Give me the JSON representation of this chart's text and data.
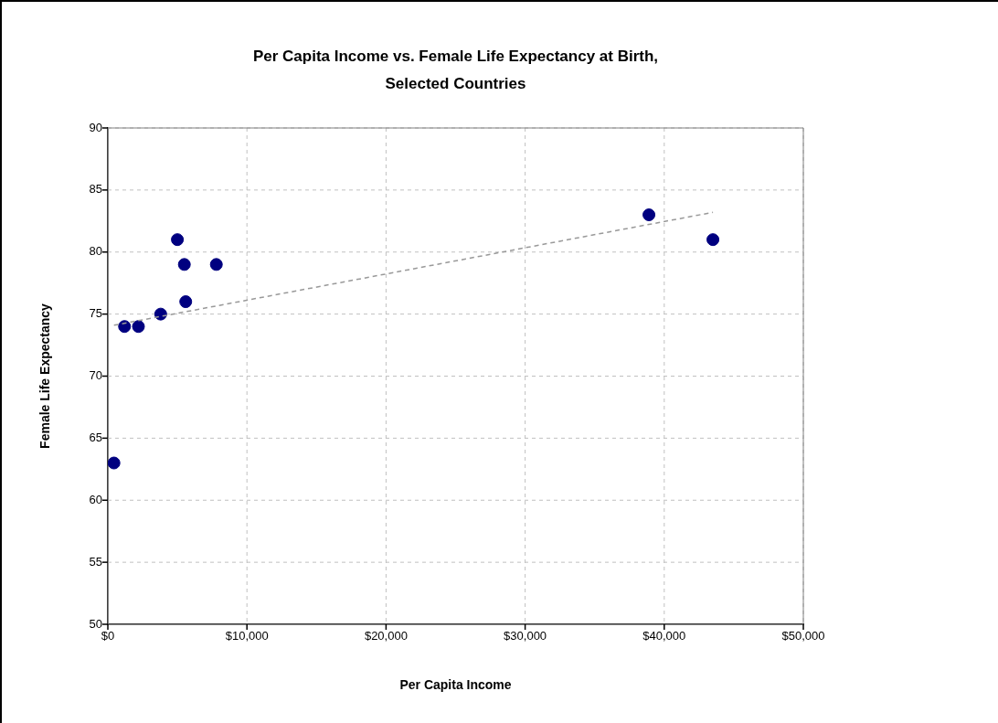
{
  "chart_data": {
    "type": "scatter",
    "title": "Per Capita Income vs. Female Life Expectancy at Birth,\nSelected Countries",
    "xlabel": "Per Capita Income",
    "ylabel": "Female Life Expectancy",
    "series": [
      {
        "color": "#000080",
        "marker": "circle",
        "x": [
          440,
          1200,
          2200,
          3800,
          5000,
          5500,
          5600,
          7800,
          38900,
          43500
        ],
        "values": [
          63,
          74,
          74,
          75,
          81,
          79,
          76,
          79,
          83,
          81
        ]
      },
      {
        "type": "line",
        "color": "#999999",
        "marker": "none",
        "line_style": "dashed",
        "x": [
          440,
          43500
        ],
        "values": [
          74.1,
          83.2
        ]
      }
    ],
    "xlim": [
      0,
      50000
    ],
    "xticks": [
      {
        "value": 0,
        "label": "$0"
      },
      {
        "value": 10000,
        "label": "$10,000"
      },
      {
        "value": 20000,
        "label": "$20,000"
      },
      {
        "value": 30000,
        "label": "$30,000"
      },
      {
        "value": 40000,
        "label": "$40,000"
      },
      {
        "value": 50000,
        "label": "$50,000"
      }
    ],
    "ylim": [
      50,
      90
    ],
    "yticks": [
      50,
      55,
      60,
      65,
      70,
      75,
      80,
      85,
      90
    ],
    "grid": true,
    "legend": false
  }
}
